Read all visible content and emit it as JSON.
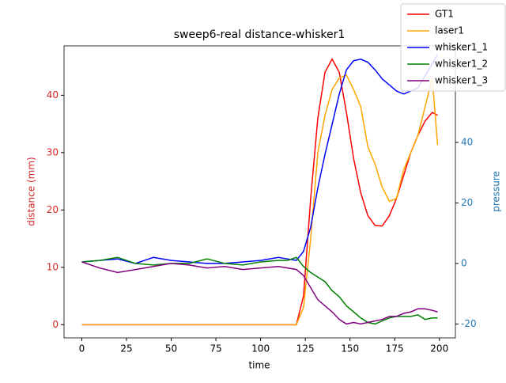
{
  "chart_data": {
    "type": "line",
    "title": "sweep6-real distance-whisker1",
    "x_label": "time",
    "y_label": "distance (mm)",
    "y2_label": "pressure",
    "y_label_color": "#d62728",
    "y2_label_color": "#1f77b4",
    "x": [
      0,
      10,
      20,
      30,
      40,
      50,
      60,
      70,
      80,
      90,
      100,
      110,
      115,
      120,
      124,
      128,
      132,
      136,
      140,
      144,
      148,
      152,
      156,
      160,
      164,
      168,
      172,
      176,
      180,
      184,
      188,
      192,
      196,
      199
    ],
    "xlim": [
      -9.95,
      208.95
    ],
    "xticks": [
      0,
      25,
      50,
      75,
      100,
      125,
      150,
      175,
      200
    ],
    "ylim": [
      -2.3,
      48.6
    ],
    "yticks": [
      0,
      10,
      20,
      30,
      40
    ],
    "y2lim": [
      -24.6,
      71.9
    ],
    "y2ticks": [
      -20,
      0,
      20,
      40
    ],
    "legend": "upper right",
    "series": [
      {
        "name": "GT1",
        "color": "#ff0000",
        "values": [
          0,
          0,
          0,
          0,
          0,
          0,
          0,
          0,
          0,
          0,
          0,
          0,
          0,
          0,
          5,
          22,
          36,
          44,
          46.3,
          44,
          37,
          29,
          23,
          19,
          17.3,
          17.2,
          19,
          22,
          26,
          30,
          33,
          35.5,
          37,
          36.5
        ]
      },
      {
        "name": "laser1",
        "color": "#ffa500",
        "values": [
          0,
          0,
          0,
          0,
          0,
          0,
          0,
          0,
          0,
          0,
          0,
          0,
          0,
          0,
          3,
          15,
          30,
          36.5,
          41,
          43,
          43.5,
          41,
          38,
          31,
          28,
          24,
          21.5,
          22,
          27,
          30,
          33,
          38,
          43,
          31.3
        ]
      },
      {
        "name": "whisker1_1",
        "color": "#0000ff",
        "axis": "y2",
        "values": [
          0.5,
          1,
          1.5,
          0,
          2,
          1,
          0.5,
          0,
          0,
          0.5,
          1,
          2,
          1.5,
          1,
          4,
          12,
          25,
          36,
          46,
          56,
          64,
          67,
          67.5,
          66.5,
          64,
          61,
          59,
          57,
          56,
          57,
          58,
          62,
          66,
          69
        ]
      },
      {
        "name": "whisker1_2",
        "color": "#008000",
        "axis": "y2",
        "values": [
          0.5,
          1,
          2,
          0,
          -0.5,
          0,
          0,
          1.5,
          0,
          -0.5,
          0.5,
          1,
          1,
          2,
          -1,
          -3,
          -4.5,
          -6,
          -9,
          -11,
          -14,
          -16,
          -18,
          -19.5,
          -20,
          -19,
          -18,
          -17.5,
          -17.5,
          -17.5,
          -17,
          -18.5,
          -18,
          -18
        ]
      },
      {
        "name": "whisker1_3",
        "color": "#800080",
        "axis": "y2",
        "values": [
          0.5,
          -1.5,
          -3,
          -2,
          -1,
          0,
          -0.5,
          -1.5,
          -1,
          -2,
          -1.5,
          -1,
          -1.5,
          -2,
          -4,
          -8,
          -12,
          -14,
          -16,
          -18.5,
          -20,
          -19.5,
          -20,
          -19.5,
          -19,
          -18.5,
          -17.5,
          -17.5,
          -16.5,
          -16,
          -15,
          -15,
          -15.5,
          -16
        ]
      }
    ]
  }
}
